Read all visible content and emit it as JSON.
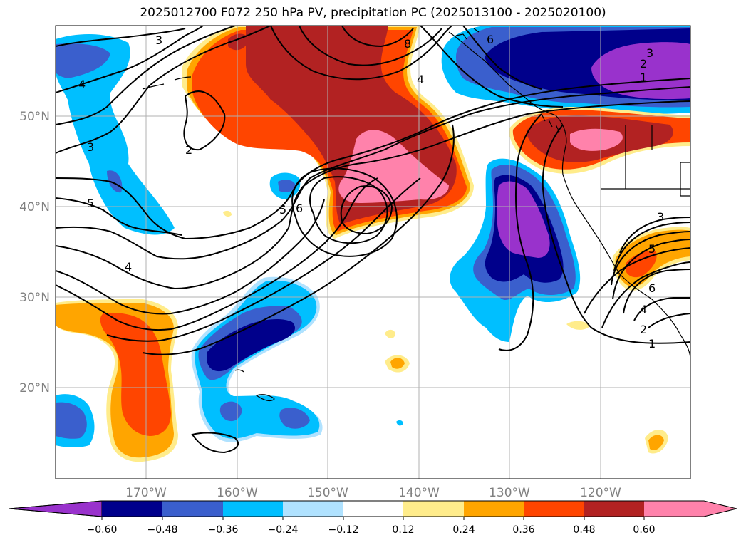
{
  "title": "2025012700 F072 250 hPa PV, precipitation PC (2025013100 - 2025020100)",
  "lat_labels": [
    "50°N",
    "40°N",
    "30°N",
    "20°N"
  ],
  "lon_labels": [
    "170°W",
    "160°W",
    "150°W",
    "140°W",
    "130°W",
    "120°W"
  ],
  "colorbar": {
    "ticks": [
      "−0.60",
      "−0.48",
      "−0.36",
      "−0.24",
      "−0.12",
      "0.12",
      "0.24",
      "0.36",
      "0.48",
      "0.60"
    ],
    "colors": [
      "#9932cc",
      "#00008b",
      "#3a5fcd",
      "#00bfff",
      "#b0e2ff",
      "#ffffff",
      "#ffec8b",
      "#ffa500",
      "#ff4500",
      "#b22222",
      "#ff82ab"
    ]
  },
  "contour_labels": [
    "3",
    "4",
    "3",
    "2",
    "5",
    "4",
    "5",
    "6",
    "8",
    "4",
    "6",
    "3",
    "2",
    "1",
    "3",
    "5",
    "6",
    "4",
    "2",
    "1"
  ],
  "colors": {
    "purple": "#9932cc",
    "navy": "#00008b",
    "royal": "#3a5fcd",
    "sky": "#00bfff",
    "pale_blue": "#b0e2ff",
    "pale_yellow": "#ffec8b",
    "orange": "#ffa500",
    "red_orange": "#ff4500",
    "firebrick": "#b22222",
    "pink": "#ff82ab",
    "grid": "#b0b0b0"
  }
}
